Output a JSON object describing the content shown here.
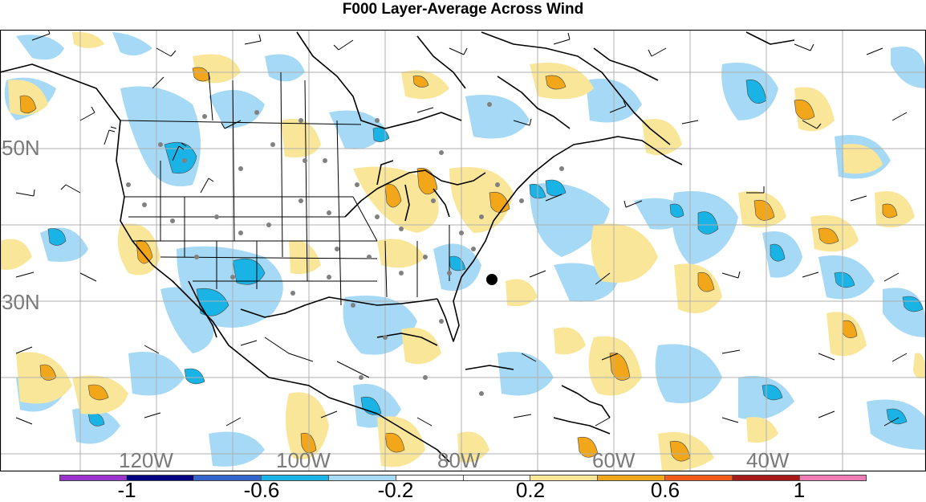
{
  "title": "F000 Layer-Average Across Wind",
  "map": {
    "lat_labels": [
      "50N",
      "30N"
    ],
    "lon_labels": [
      "120W",
      "100W",
      "80W",
      "60W",
      "40W"
    ],
    "colors": {
      "grid": "#b0b0b0",
      "coast": "#000000",
      "station": "#808080",
      "marker": "#000000"
    }
  },
  "colorbar": {
    "colors": [
      "#9933cc",
      "#000080",
      "#3366cc",
      "#19b3e6",
      "#a6d9f5",
      "#ffffff",
      "#ffffff",
      "#fae699",
      "#f2a61a",
      "#f25a19",
      "#a61a1a",
      "#f07ab3"
    ],
    "tick_labels": [
      "-1",
      "-0.6",
      "-0.2",
      "0.2",
      "0.6",
      "1"
    ]
  }
}
